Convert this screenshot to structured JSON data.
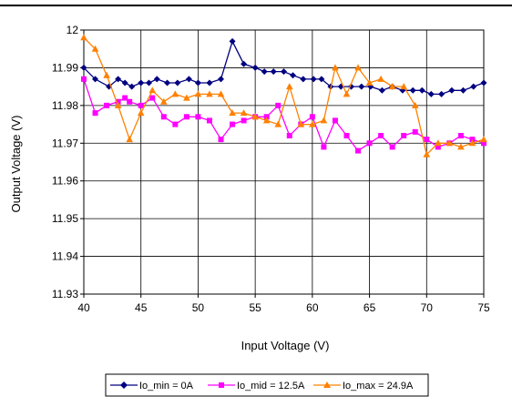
{
  "chart_data": {
    "type": "line",
    "xlabel": "Input Voltage (V)",
    "ylabel": "Output Voltage (V)",
    "xlim": [
      40,
      75
    ],
    "ylim": [
      11.93,
      12
    ],
    "xticks": [
      40,
      45,
      50,
      55,
      60,
      65,
      70,
      75
    ],
    "xtick_labels": [
      "40",
      "45",
      "50",
      "55",
      "60",
      "65",
      "70",
      "75"
    ],
    "yticks": [
      11.93,
      11.94,
      11.95,
      11.96,
      11.97,
      11.98,
      11.99,
      12
    ],
    "ytick_labels": [
      "11.93",
      "11.94",
      "11.95",
      "11.96",
      "11.97",
      "11.98",
      "11.99",
      "12"
    ],
    "grid": true,
    "legend_position": "bottom",
    "series": [
      {
        "name": "Io_min = 0A",
        "color": "#000080",
        "marker": "diamond",
        "x": [
          40,
          41,
          42.2,
          43,
          43.6,
          44.2,
          45,
          45.7,
          46.4,
          47.3,
          48.2,
          49.2,
          50,
          51,
          52,
          53,
          54,
          55,
          55.8,
          56.6,
          57.5,
          58.3,
          59.2,
          60.1,
          60.8,
          61.6,
          62.5,
          63.4,
          64.3,
          65.1,
          66.1,
          67,
          67.9,
          68.8,
          69.6,
          70.4,
          71.3,
          72.2,
          73.2,
          74.1,
          75
        ],
        "y": [
          11.99,
          11.987,
          11.985,
          11.987,
          11.986,
          11.985,
          11.986,
          11.986,
          11.987,
          11.986,
          11.986,
          11.987,
          11.986,
          11.986,
          11.987,
          11.997,
          11.991,
          11.99,
          11.989,
          11.989,
          11.989,
          11.988,
          11.987,
          11.987,
          11.987,
          11.985,
          11.985,
          11.985,
          11.985,
          11.985,
          11.984,
          11.985,
          11.984,
          11.984,
          11.984,
          11.983,
          11.983,
          11.984,
          11.984,
          11.985,
          11.986
        ]
      },
      {
        "name": "Io_mid = 12.5A",
        "color": "#ff00ff",
        "marker": "square",
        "x": [
          40,
          41,
          42,
          43,
          43.6,
          44,
          45,
          46,
          47,
          48,
          49,
          50,
          51,
          52,
          53,
          54,
          55,
          56,
          57,
          58,
          59,
          60,
          61,
          62,
          63,
          64,
          65,
          66,
          67,
          68,
          69,
          70,
          71,
          72,
          73,
          74,
          75
        ],
        "y": [
          11.987,
          11.978,
          11.98,
          11.981,
          11.982,
          11.981,
          11.98,
          11.982,
          11.977,
          11.975,
          11.977,
          11.977,
          11.976,
          11.971,
          11.975,
          11.976,
          11.977,
          11.977,
          11.98,
          11.972,
          11.975,
          11.977,
          11.969,
          11.976,
          11.972,
          11.968,
          11.97,
          11.972,
          11.969,
          11.972,
          11.973,
          11.971,
          11.969,
          11.97,
          11.972,
          11.971,
          11.97
        ]
      },
      {
        "name": "Io_max = 24.9A",
        "color": "#ff8000",
        "marker": "triangle",
        "x": [
          40,
          41,
          42,
          43,
          44,
          45,
          46,
          47,
          48,
          49,
          50,
          51,
          52,
          53,
          54,
          55,
          56,
          57,
          58,
          59,
          60,
          61,
          62,
          63,
          64,
          65,
          66,
          67,
          68,
          69,
          70,
          71,
          72,
          73,
          74,
          75
        ],
        "y": [
          11.998,
          11.995,
          11.988,
          11.98,
          11.971,
          11.978,
          11.984,
          11.981,
          11.983,
          11.982,
          11.983,
          11.983,
          11.983,
          11.978,
          11.978,
          11.977,
          11.976,
          11.975,
          11.985,
          11.975,
          11.975,
          11.976,
          11.99,
          11.983,
          11.99,
          11.986,
          11.987,
          11.985,
          11.985,
          11.98,
          11.967,
          11.97,
          11.97,
          11.969,
          11.97,
          11.971
        ]
      }
    ]
  }
}
